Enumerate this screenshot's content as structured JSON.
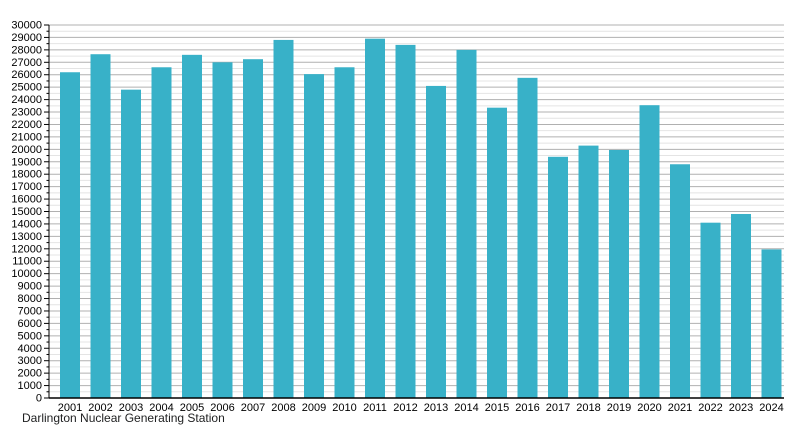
{
  "chart_data": {
    "type": "bar",
    "title": "Darlington Nuclear Generating Station",
    "xlabel": "",
    "ylabel": "",
    "categories": [
      "2001",
      "2002",
      "2003",
      "2004",
      "2005",
      "2006",
      "2007",
      "2008",
      "2009",
      "2010",
      "2011",
      "2012",
      "2013",
      "2014",
      "2015",
      "2016",
      "2017",
      "2018",
      "2019",
      "2020",
      "2021",
      "2022",
      "2023",
      "2024"
    ],
    "values": [
      26200,
      27650,
      24800,
      26600,
      27600,
      27000,
      27250,
      28800,
      26050,
      26600,
      28900,
      28400,
      25100,
      28000,
      23350,
      25750,
      19400,
      20300,
      19950,
      23550,
      18800,
      14100,
      14800,
      11950
    ],
    "ylim": [
      0,
      30000
    ],
    "y_tick_step": 1000,
    "y_minor_step": 500,
    "y_tick_labels": [
      "0",
      "1000",
      "2000",
      "3000",
      "4000",
      "5000",
      "6000",
      "7000",
      "8000",
      "9000",
      "10000",
      "11000",
      "12000",
      "13000",
      "14000",
      "15000",
      "16000",
      "17000",
      "18000",
      "19000",
      "20000",
      "21000",
      "22000",
      "23000",
      "24000",
      "25000",
      "26000",
      "27000",
      "28000",
      "29000",
      "30000"
    ],
    "grid": true,
    "legend": null,
    "bar_color": "#38b1c8",
    "major_grid_color": "#b0b0b0",
    "minor_grid_color": "#e4e4e4",
    "axis_color": "#000000"
  }
}
